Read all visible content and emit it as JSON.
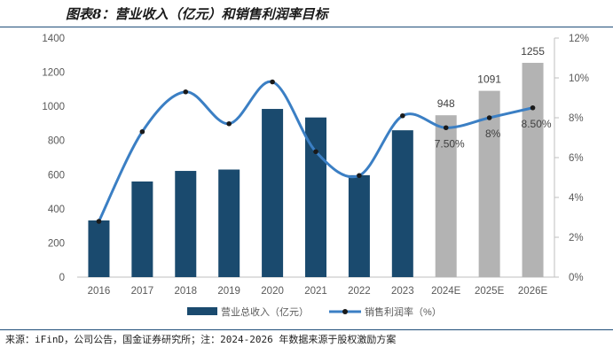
{
  "title": "图表8：营业收入（亿元）和销售利润率目标",
  "source": "来源：iFinD，公司公告，国金证券研究所；注：2024-2026 年数据来源于股权激励方案",
  "chart_data": {
    "type": "bar",
    "categories": [
      "2016",
      "2017",
      "2018",
      "2019",
      "2020",
      "2021",
      "2022",
      "2023",
      "2024E",
      "2025E",
      "2026E"
    ],
    "series": [
      {
        "name": "营业总收入（亿元）",
        "type": "bar",
        "axis": "left",
        "values": [
          332,
          560,
          622,
          630,
          985,
          935,
          597,
          860,
          948,
          1091,
          1255
        ],
        "colors": [
          "#1a4a6e",
          "#1a4a6e",
          "#1a4a6e",
          "#1a4a6e",
          "#1a4a6e",
          "#1a4a6e",
          "#1a4a6e",
          "#1a4a6e",
          "#b3b3b3",
          "#b3b3b3",
          "#b3b3b3"
        ],
        "data_labels": [
          null,
          null,
          null,
          null,
          null,
          null,
          null,
          null,
          "948",
          "1091",
          "1255"
        ]
      },
      {
        "name": "销售利润率（%）",
        "type": "line",
        "axis": "right",
        "values": [
          2.8,
          7.3,
          9.3,
          7.7,
          9.8,
          6.3,
          5.1,
          8.1,
          7.5,
          8.0,
          8.5
        ],
        "color": "#3b7fc4",
        "data_labels": [
          null,
          null,
          null,
          null,
          null,
          null,
          null,
          null,
          "7.50%",
          "8%",
          "8.50%"
        ]
      }
    ],
    "y_left": {
      "min": 0,
      "max": 1400,
      "ticks": [
        "0",
        "200",
        "400",
        "600",
        "800",
        "1000",
        "1200",
        "1400"
      ]
    },
    "y_right": {
      "min": 0,
      "max": 12,
      "ticks": [
        "0%",
        "2%",
        "4%",
        "6%",
        "8%",
        "10%",
        "12%"
      ]
    },
    "grid": false,
    "legend_position": "bottom"
  }
}
